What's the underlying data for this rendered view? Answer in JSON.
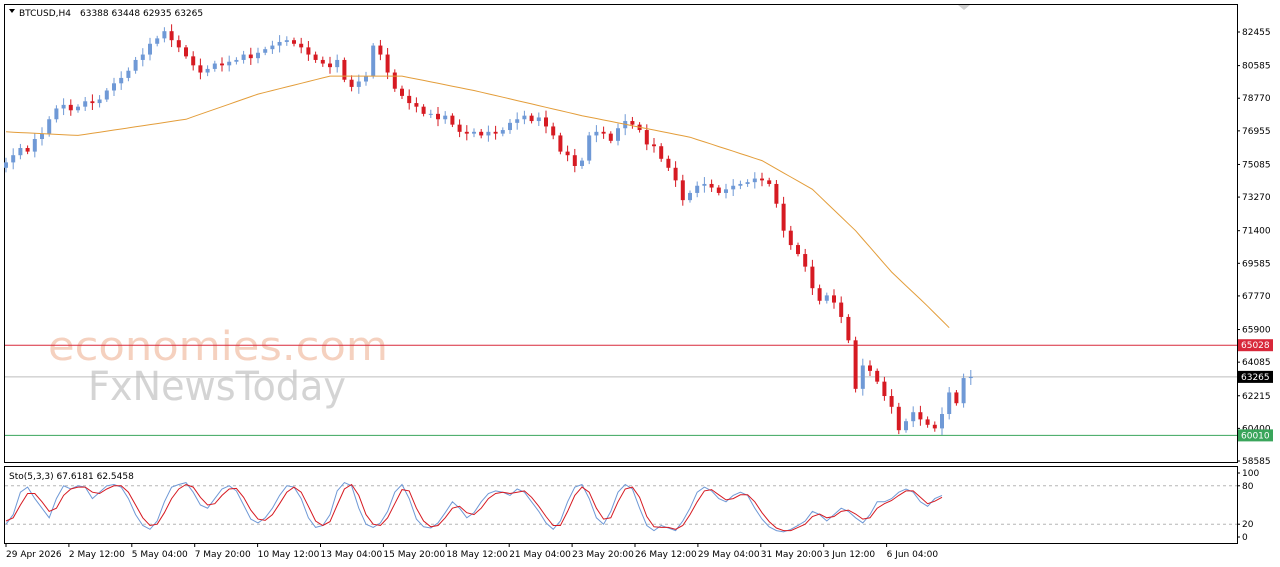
{
  "header": {
    "symbol": "BTCUSD,H4",
    "ohlc": "63388 63448 62935 63265"
  },
  "watermark": {
    "line1": "economies.com",
    "line2": "FxNewsToday"
  },
  "colors": {
    "bull": "#6f99d6",
    "bear": "#d61a22",
    "ma": "#e39d3a",
    "resistance": "#d8283a",
    "support": "#3aa55b",
    "current": "#bdbdbd",
    "stoch_main": "#6f99d6",
    "stoch_signal": "#d61a22"
  },
  "chart_data": {
    "type": "candlestick",
    "price_axis": {
      "ylim": [
        58200,
        83600
      ],
      "ticks": [
        "82455",
        "80585",
        "78770",
        "76955",
        "75085",
        "73270",
        "71400",
        "69585",
        "67770",
        "65900",
        "64085",
        "62215",
        "60400",
        "58585"
      ],
      "tick_values": [
        82455,
        80585,
        78770,
        76955,
        75085,
        73270,
        71400,
        69585,
        67770,
        65900,
        64085,
        62215,
        60400,
        58585
      ]
    },
    "levels": [
      {
        "label": "65028",
        "value": 65028,
        "role": "resistance"
      },
      {
        "label": "63265",
        "value": 63265,
        "role": "current"
      },
      {
        "label": "60010",
        "value": 60010,
        "role": "support"
      }
    ],
    "x_labels": [
      "29 Apr 2026",
      "2 May 12:00",
      "5 May 04:00",
      "7 May 20:00",
      "10 May 12:00",
      "13 May 04:00",
      "15 May 20:00",
      "18 May 12:00",
      "21 May 04:00",
      "23 May 20:00",
      "26 May 12:00",
      "29 May 04:00",
      "31 May 20:00",
      "3 Jun 12:00",
      "6 Jun 04:00"
    ],
    "closes": [
      75200,
      75600,
      76000,
      75800,
      76500,
      76800,
      77600,
      78200,
      78400,
      78100,
      78300,
      78600,
      78500,
      78700,
      79200,
      79600,
      79900,
      80300,
      80900,
      81200,
      81800,
      82100,
      82500,
      82000,
      81600,
      81100,
      80600,
      80200,
      80400,
      80700,
      80600,
      80800,
      80900,
      81200,
      81000,
      81300,
      81500,
      81700,
      81900,
      82000,
      81800,
      81600,
      81200,
      80900,
      80700,
      80500,
      80900,
      79800,
      79400,
      79700,
      80000,
      81700,
      81200,
      80200,
      79300,
      78900,
      78500,
      78300,
      77900,
      77900,
      77600,
      77800,
      77300,
      76900,
      76800,
      76900,
      76700,
      76900,
      76800,
      77000,
      77400,
      77600,
      77800,
      77500,
      77700,
      77200,
      76700,
      75800,
      75600,
      75000,
      75300,
      76700,
      76900,
      76800,
      76400,
      77100,
      77500,
      77300,
      77000,
      76200,
      76100,
      75400,
      74900,
      74200,
      73100,
      73500,
      73900,
      74000,
      73800,
      73500,
      73700,
      73900,
      74000,
      74100,
      74300,
      74200,
      74000,
      72900,
      71400,
      70600,
      70100,
      69400,
      68200,
      67500,
      67800,
      67400,
      66600,
      65300,
      62600,
      63900,
      63600,
      63000,
      62200,
      61600,
      60300,
      60800,
      61300,
      60900,
      60600,
      60400,
      61200,
      62400,
      61800,
      63200,
      63265
    ],
    "moving_average": {
      "knots": [
        [
          0,
          76900
        ],
        [
          10,
          76700
        ],
        [
          25,
          77600
        ],
        [
          35,
          79000
        ],
        [
          45,
          80000
        ],
        [
          55,
          80000
        ],
        [
          65,
          79200
        ],
        [
          80,
          77800
        ],
        [
          95,
          76600
        ],
        [
          105,
          75300
        ],
        [
          112,
          73700
        ],
        [
          118,
          71400
        ],
        [
          123,
          69100
        ],
        [
          128,
          67200
        ],
        [
          131,
          66000
        ]
      ]
    },
    "stochastic": {
      "label": "Sto(5,3,3) 67.6181 62.5458",
      "ylim": [
        0,
        100
      ],
      "ticks": [
        "100",
        "80",
        "20",
        "0"
      ],
      "tick_values": [
        100,
        80,
        20,
        0
      ],
      "levels": [
        80,
        20
      ],
      "k": [
        20,
        35,
        70,
        78,
        60,
        45,
        30,
        60,
        80,
        75,
        80,
        78,
        60,
        70,
        80,
        82,
        78,
        60,
        35,
        18,
        12,
        25,
        55,
        78,
        82,
        85,
        70,
        50,
        45,
        60,
        75,
        80,
        72,
        50,
        28,
        22,
        30,
        45,
        65,
        80,
        78,
        60,
        30,
        15,
        18,
        35,
        72,
        85,
        80,
        45,
        20,
        15,
        22,
        40,
        70,
        82,
        60,
        28,
        16,
        14,
        22,
        38,
        55,
        45,
        30,
        38,
        55,
        68,
        72,
        70,
        65,
        75,
        70,
        55,
        40,
        22,
        12,
        25,
        55,
        78,
        82,
        60,
        30,
        20,
        40,
        70,
        82,
        75,
        45,
        18,
        10,
        18,
        14,
        10,
        25,
        45,
        70,
        78,
        72,
        60,
        55,
        65,
        70,
        65,
        45,
        28,
        16,
        10,
        8,
        12,
        18,
        25,
        40,
        35,
        25,
        35,
        45,
        40,
        30,
        22,
        35,
        55,
        55,
        60,
        70,
        75,
        70,
        55,
        48,
        60,
        65
      ],
      "d": [
        25,
        30,
        50,
        68,
        68,
        55,
        40,
        45,
        65,
        75,
        78,
        78,
        70,
        68,
        75,
        80,
        80,
        70,
        50,
        30,
        18,
        20,
        38,
        60,
        75,
        82,
        78,
        62,
        50,
        52,
        65,
        75,
        76,
        62,
        42,
        28,
        26,
        35,
        52,
        70,
        78,
        70,
        48,
        25,
        18,
        24,
        50,
        75,
        82,
        65,
        35,
        20,
        18,
        30,
        52,
        74,
        72,
        45,
        25,
        16,
        18,
        30,
        45,
        48,
        38,
        35,
        45,
        60,
        68,
        70,
        68,
        70,
        72,
        62,
        48,
        32,
        18,
        18,
        40,
        65,
        78,
        70,
        45,
        28,
        30,
        55,
        75,
        78,
        62,
        32,
        16,
        15,
        15,
        12,
        18,
        35,
        55,
        72,
        74,
        66,
        58,
        60,
        66,
        66,
        55,
        38,
        24,
        14,
        10,
        10,
        15,
        20,
        32,
        36,
        30,
        32,
        40,
        42,
        36,
        28,
        30,
        45,
        52,
        57,
        65,
        72,
        72,
        62,
        52,
        56,
        62
      ]
    }
  }
}
